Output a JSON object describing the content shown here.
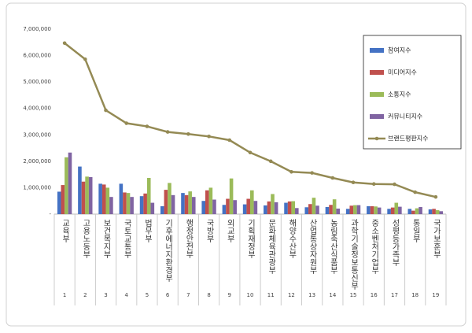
{
  "chart_data": {
    "type": "bar-line",
    "categories": [
      "교육부",
      "고용노동부",
      "보건복지부",
      "국토교통부",
      "법무부",
      "기후에너지환경부",
      "행정안전부",
      "국방부",
      "외교부",
      "기획재정부",
      "문화체육관광부",
      "해양수산부",
      "산업통상자원부",
      "농림축산식품부",
      "과학기술정보통신부",
      "중소벤처기업부",
      "성평등가족부",
      "통일부",
      "국가보훈부"
    ],
    "ranks": [
      1,
      2,
      3,
      4,
      5,
      6,
      7,
      8,
      9,
      10,
      11,
      12,
      13,
      14,
      15,
      16,
      17,
      18,
      19
    ],
    "series": [
      {
        "name": "참여지수",
        "type": "bar",
        "color": "#4472c4",
        "values": [
          850000,
          1800000,
          1150000,
          1150000,
          680000,
          300000,
          800000,
          500000,
          350000,
          370000,
          330000,
          430000,
          260000,
          270000,
          200000,
          300000,
          200000,
          200000,
          180000
        ]
      },
      {
        "name": "미디어지수",
        "type": "bar",
        "color": "#c0504d",
        "values": [
          1100000,
          1230000,
          1120000,
          820000,
          780000,
          920000,
          720000,
          900000,
          580000,
          580000,
          480000,
          480000,
          380000,
          350000,
          320000,
          300000,
          250000,
          130000,
          200000
        ]
      },
      {
        "name": "소통지수",
        "type": "bar",
        "color": "#9bbb59",
        "values": [
          2150000,
          1420000,
          1000000,
          800000,
          1370000,
          1180000,
          860000,
          1000000,
          1350000,
          900000,
          760000,
          490000,
          620000,
          560000,
          340000,
          290000,
          430000,
          220000,
          150000
        ]
      },
      {
        "name": "커뮤니티지수",
        "type": "bar",
        "color": "#8064a2",
        "values": [
          2330000,
          1400000,
          650000,
          650000,
          430000,
          720000,
          650000,
          550000,
          530000,
          500000,
          450000,
          230000,
          320000,
          210000,
          340000,
          250000,
          280000,
          270000,
          110000
        ]
      },
      {
        "name": "브랜드평판지수",
        "type": "line",
        "color": "#948a54",
        "values": [
          6470000,
          5860000,
          3930000,
          3440000,
          3320000,
          3110000,
          3030000,
          2940000,
          2800000,
          2330000,
          2000000,
          1600000,
          1560000,
          1370000,
          1200000,
          1140000,
          1130000,
          830000,
          650000
        ]
      }
    ],
    "ylim": [
      0,
      7000000
    ],
    "yticks": [
      {
        "value": 0,
        "label": "-"
      },
      {
        "value": 1000000,
        "label": "1,000,000"
      },
      {
        "value": 2000000,
        "label": "2,000,000"
      },
      {
        "value": 3000000,
        "label": "3,000,000"
      },
      {
        "value": 4000000,
        "label": "4,000,000"
      },
      {
        "value": 5000000,
        "label": "5,000,000"
      },
      {
        "value": 6000000,
        "label": "6,000,000"
      },
      {
        "value": 7000000,
        "label": "7,000,000"
      }
    ],
    "grid": false,
    "legend": "top-right"
  }
}
